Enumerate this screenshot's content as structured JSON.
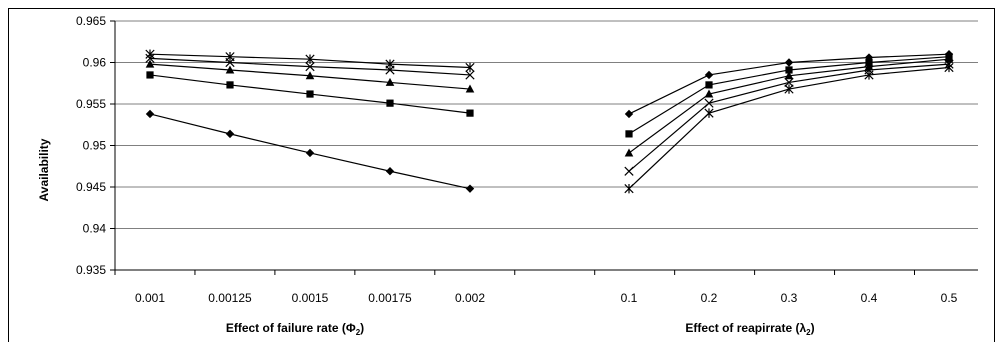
{
  "chart_data": {
    "type": "line",
    "ylabel": "Availability",
    "ylim": [
      0.935,
      0.965
    ],
    "yticks": [
      "0.965",
      "0.96",
      "0.955",
      "0.95",
      "0.945",
      "0.94",
      "0.935"
    ],
    "ytick_values": [
      0.965,
      0.96,
      0.955,
      0.95,
      0.945,
      0.94,
      0.935
    ],
    "grid": "horizontal",
    "panels": [
      {
        "xlabel_prefix": "Effect  of failure rate (Φ",
        "xlabel_sub": "2",
        "xlabel_suffix": ")",
        "categories": [
          "0.001",
          "0.00125",
          "0.0015",
          "0.00175",
          "0.002"
        ],
        "series": [
          {
            "marker": "diamond",
            "values": [
              0.9538,
              0.9514,
              0.9491,
              0.9469,
              0.9448
            ]
          },
          {
            "marker": "square",
            "values": [
              0.9585,
              0.9573,
              0.9562,
              0.9551,
              0.9539
            ]
          },
          {
            "marker": "triangle",
            "values": [
              0.9598,
              0.9591,
              0.9584,
              0.9576,
              0.9568
            ]
          },
          {
            "marker": "x",
            "values": [
              0.9605,
              0.96,
              0.9595,
              0.9591,
              0.9585
            ]
          },
          {
            "marker": "star",
            "values": [
              0.961,
              0.9607,
              0.9604,
              0.9598,
              0.9594
            ]
          }
        ]
      },
      {
        "xlabel_prefix": "Effect  of reapirrate (λ",
        "xlabel_sub": "2",
        "xlabel_suffix": ")",
        "categories": [
          "0.1",
          "0.2",
          "0.3",
          "0.4",
          "0.5"
        ],
        "series": [
          {
            "marker": "diamond",
            "values": [
              0.9538,
              0.9585,
              0.96,
              0.9606,
              0.961
            ]
          },
          {
            "marker": "square",
            "values": [
              0.9514,
              0.9573,
              0.9591,
              0.96,
              0.9607
            ]
          },
          {
            "marker": "triangle",
            "values": [
              0.9491,
              0.9562,
              0.9584,
              0.9595,
              0.9604
            ]
          },
          {
            "marker": "x",
            "values": [
              0.9469,
              0.9551,
              0.9576,
              0.9591,
              0.9598
            ]
          },
          {
            "marker": "star",
            "values": [
              0.9448,
              0.9539,
              0.9568,
              0.9585,
              0.9594
            ]
          }
        ]
      }
    ]
  }
}
